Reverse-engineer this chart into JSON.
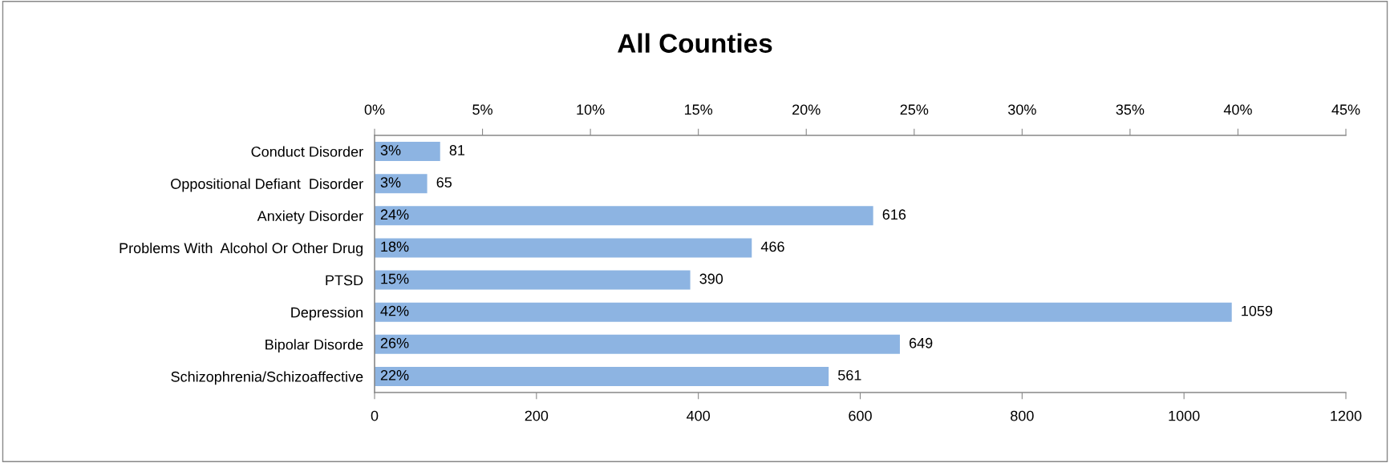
{
  "chart_data": {
    "type": "bar",
    "orientation": "horizontal",
    "title": "All Counties",
    "categories": [
      "Conduct Disorder",
      "Oppositional Defiant  Disorder",
      "Anxiety Disorder",
      "Problems With  Alcohol Or Other Drug",
      "PTSD",
      "Depression",
      "Bipolar Disorde",
      "Schizophrenia/Schizoaffective"
    ],
    "series": [
      {
        "color": "#8db4e2",
        "values": [
          81,
          65,
          616,
          466,
          390,
          1059,
          649,
          561
        ]
      }
    ],
    "annotations": [
      "3%",
      "3%",
      "24%",
      "18%",
      "15%",
      "42%",
      "26%",
      "22%"
    ],
    "data_labels": true,
    "xlim": [
      0,
      1200
    ],
    "xticks": [
      0,
      200,
      400,
      600,
      800,
      1000,
      1200
    ],
    "x2lim": [
      0,
      45
    ],
    "x2ticks": [
      {
        "value": 0,
        "label": "0%"
      },
      {
        "value": 5,
        "label": "5%"
      },
      {
        "value": 10,
        "label": "10%"
      },
      {
        "value": 15,
        "label": "15%"
      },
      {
        "value": 20,
        "label": "20%"
      },
      {
        "value": 25,
        "label": "25%"
      },
      {
        "value": 30,
        "label": "30%"
      },
      {
        "value": 35,
        "label": "35%"
      },
      {
        "value": 40,
        "label": "40%"
      },
      {
        "value": 45,
        "label": "45%"
      }
    ],
    "grid": false,
    "legend": false
  }
}
